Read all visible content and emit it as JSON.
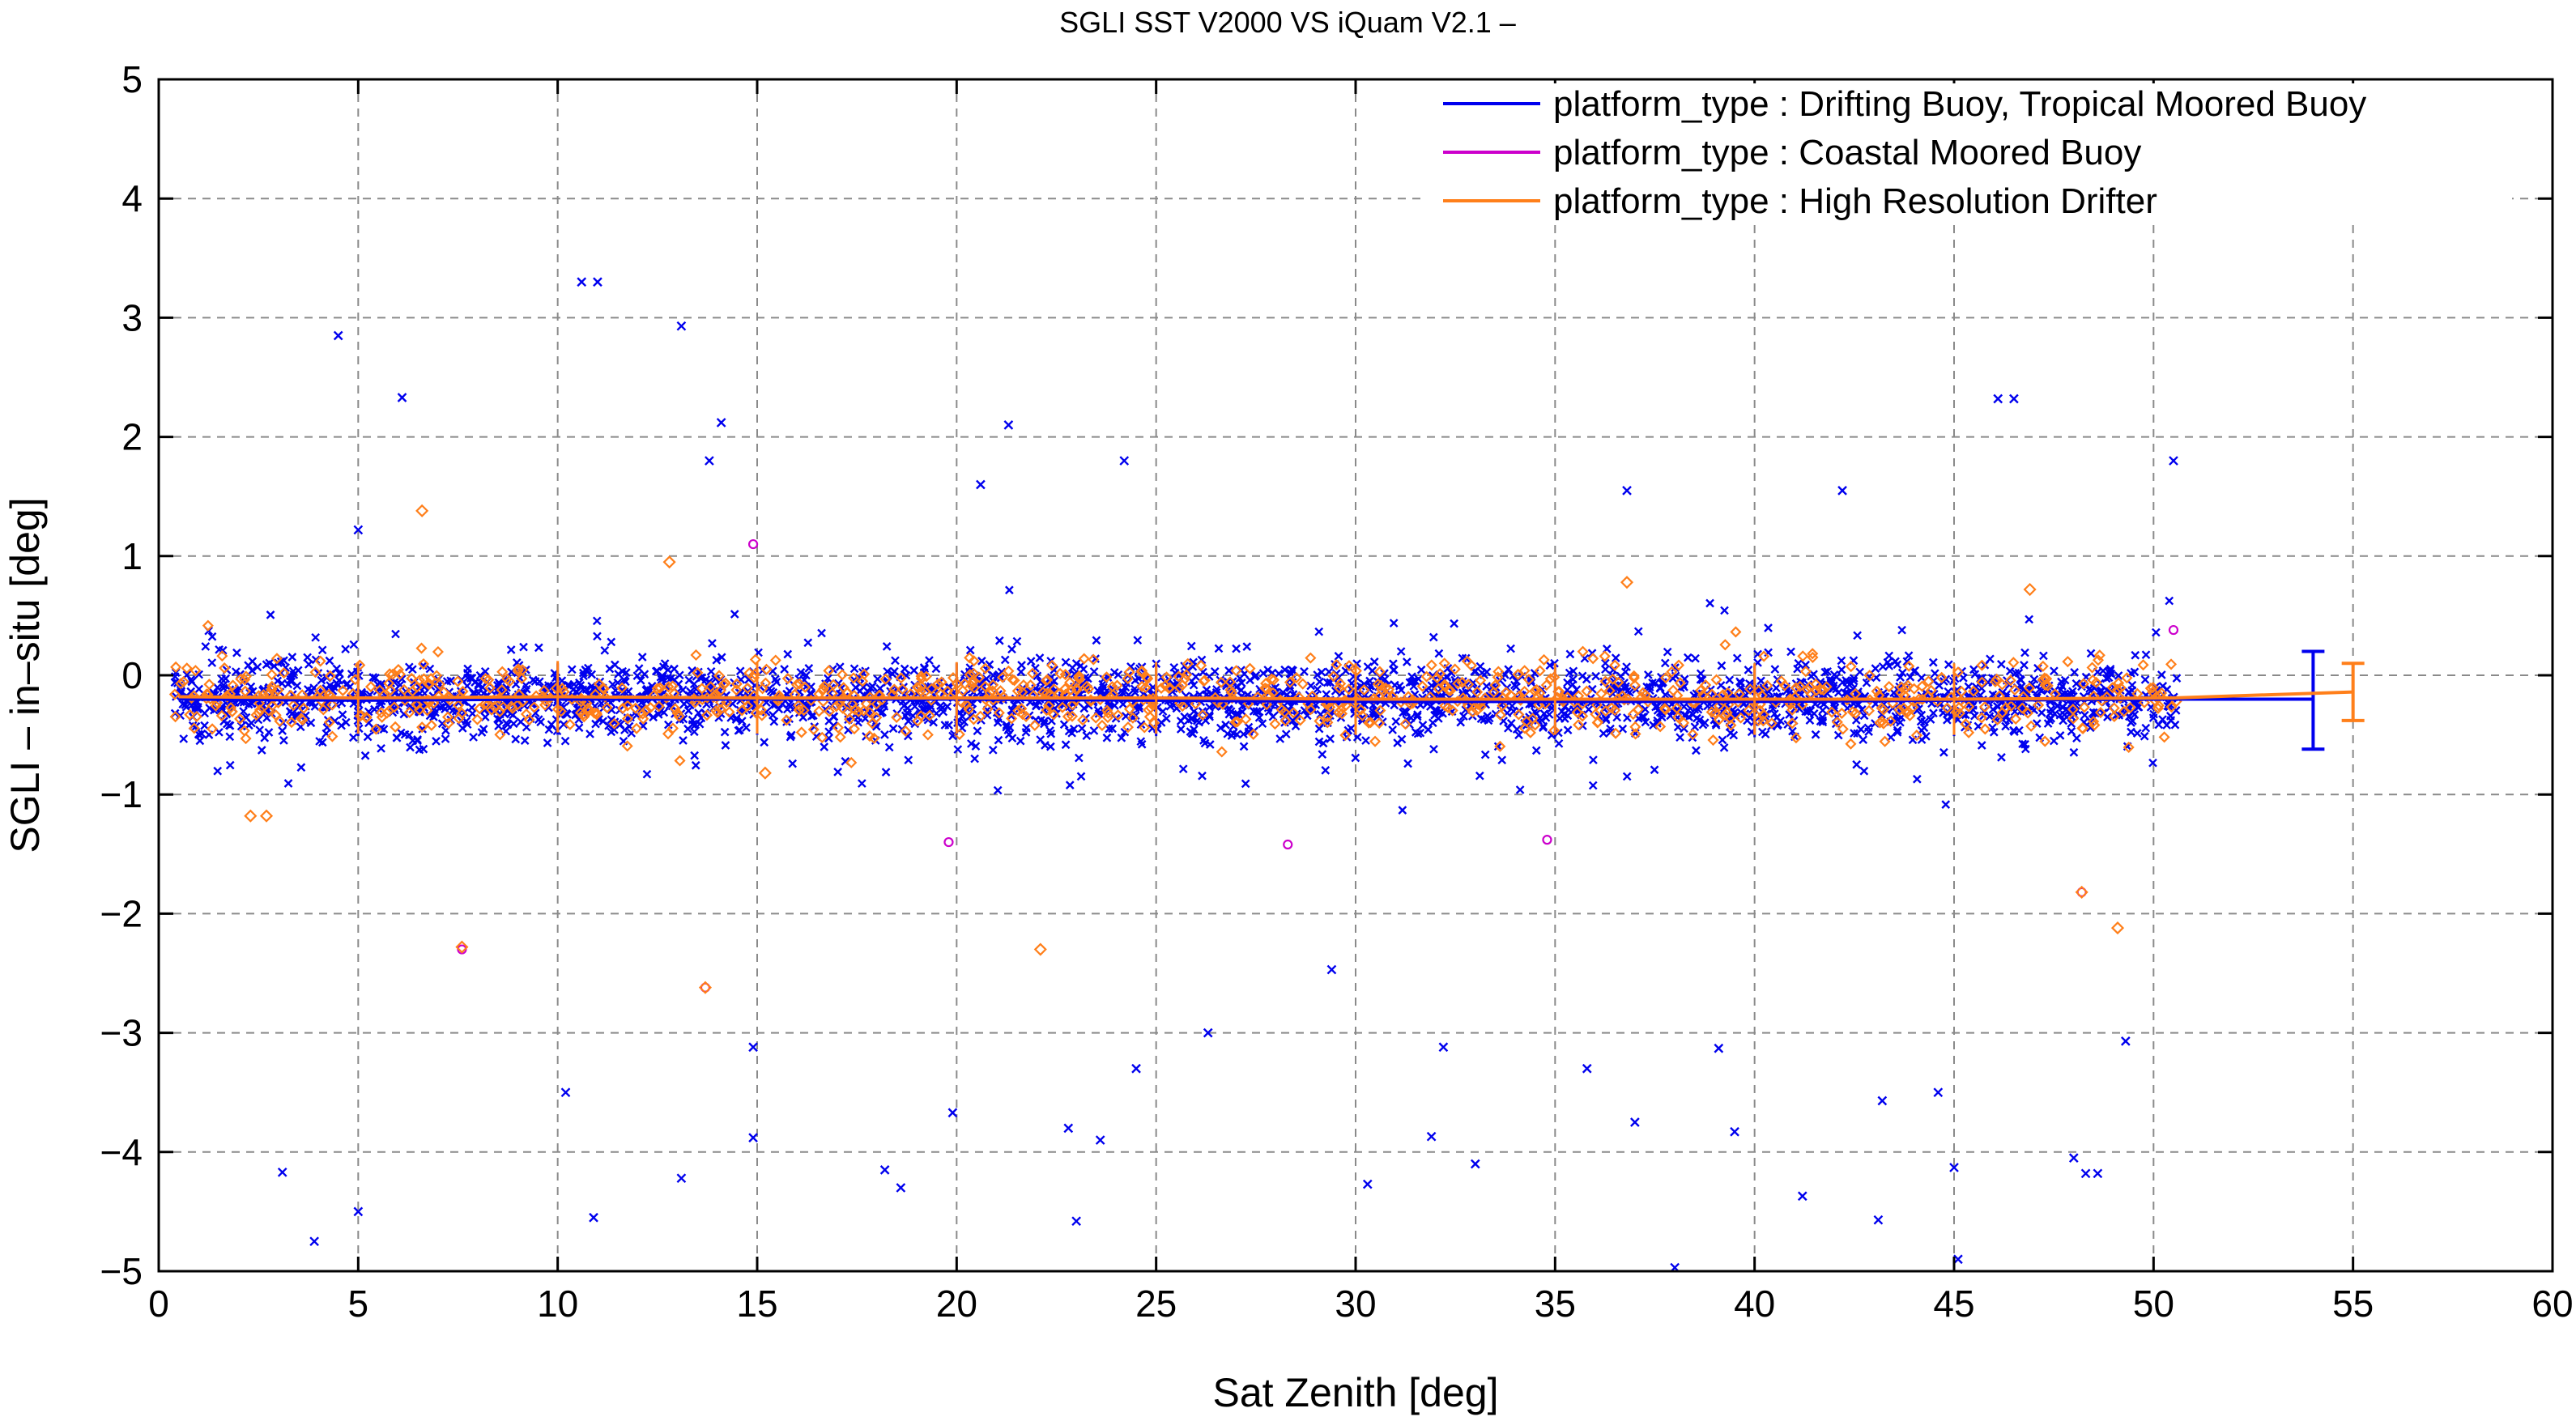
{
  "chart_data": {
    "type": "scatter",
    "title": "SGLI SST V2000 VS iQuam V2.1  –",
    "xlabel": "Sat Zenith [deg]",
    "ylabel": "SGLI – in–situ [deg]",
    "xlim": [
      0,
      60
    ],
    "ylim": [
      -5,
      5
    ],
    "x_ticks": [
      "0",
      "5",
      "10",
      "15",
      "20",
      "25",
      "30",
      "35",
      "40",
      "45",
      "50",
      "55",
      "60"
    ],
    "y_ticks": [
      "5",
      "4",
      "3",
      "2",
      "1",
      "0",
      "−1",
      "−2",
      "−3",
      "−4",
      "−5"
    ],
    "grid": true,
    "legend_position": "top-right",
    "series": [
      {
        "name": "platform_type : Drifting Buoy, Tropical Moored Buoy",
        "color": "#0000ee",
        "marker": "x",
        "mean_line": {
          "x": [
            0.5,
            5,
            10,
            15,
            20,
            25,
            30,
            35,
            40,
            45,
            50.5,
            54
          ],
          "y": [
            -0.2,
            -0.21,
            -0.2,
            -0.2,
            -0.2,
            -0.21,
            -0.22,
            -0.22,
            -0.22,
            -0.21,
            -0.2,
            -0.2
          ]
        },
        "summary_errorbar": {
          "x": 54,
          "mean": -0.2,
          "low": -0.62,
          "high": 0.2
        },
        "outliers": [
          {
            "x": 4.5,
            "y": 2.85
          },
          {
            "x": 6.1,
            "y": 2.33
          },
          {
            "x": 10.6,
            "y": 3.3
          },
          {
            "x": 11.0,
            "y": 3.3
          },
          {
            "x": 13.1,
            "y": 2.93
          },
          {
            "x": 14.1,
            "y": 2.12
          },
          {
            "x": 13.8,
            "y": 1.8
          },
          {
            "x": 21.3,
            "y": 2.1
          },
          {
            "x": 20.6,
            "y": 1.6
          },
          {
            "x": 24.2,
            "y": 1.8
          },
          {
            "x": 46.1,
            "y": 2.32
          },
          {
            "x": 46.5,
            "y": 2.32
          },
          {
            "x": 50.5,
            "y": 1.8
          },
          {
            "x": 42.2,
            "y": 1.55
          },
          {
            "x": 36.8,
            "y": 1.55
          },
          {
            "x": 5.0,
            "y": 1.22
          },
          {
            "x": 3.1,
            "y": -4.17
          },
          {
            "x": 3.9,
            "y": -4.75
          },
          {
            "x": 5.0,
            "y": -4.5
          },
          {
            "x": 10.2,
            "y": -3.5
          },
          {
            "x": 10.9,
            "y": -4.55
          },
          {
            "x": 13.1,
            "y": -4.22
          },
          {
            "x": 14.9,
            "y": -3.88
          },
          {
            "x": 14.9,
            "y": -3.12
          },
          {
            "x": 18.2,
            "y": -4.15
          },
          {
            "x": 18.6,
            "y": -4.3
          },
          {
            "x": 19.9,
            "y": -3.67
          },
          {
            "x": 22.8,
            "y": -3.8
          },
          {
            "x": 23.0,
            "y": -4.58
          },
          {
            "x": 23.6,
            "y": -3.9
          },
          {
            "x": 30.3,
            "y": -4.27
          },
          {
            "x": 31.9,
            "y": -3.87
          },
          {
            "x": 32.2,
            "y": -3.12
          },
          {
            "x": 33.0,
            "y": -4.1
          },
          {
            "x": 37.0,
            "y": -3.75
          },
          {
            "x": 39.1,
            "y": -3.13
          },
          {
            "x": 39.5,
            "y": -3.83
          },
          {
            "x": 41.2,
            "y": -4.37
          },
          {
            "x": 43.1,
            "y": -4.57
          },
          {
            "x": 43.2,
            "y": -3.57
          },
          {
            "x": 44.6,
            "y": -3.5
          },
          {
            "x": 45.0,
            "y": -4.13
          },
          {
            "x": 45.1,
            "y": -4.9
          },
          {
            "x": 48.0,
            "y": -4.05
          },
          {
            "x": 48.3,
            "y": -4.18
          },
          {
            "x": 48.6,
            "y": -4.18
          },
          {
            "x": 49.3,
            "y": -3.07
          },
          {
            "x": 38.0,
            "y": -4.97
          },
          {
            "x": 26.3,
            "y": -3.0
          },
          {
            "x": 24.5,
            "y": -3.3
          },
          {
            "x": 29.4,
            "y": -2.47
          },
          {
            "x": 35.8,
            "y": -3.3
          }
        ]
      },
      {
        "name": "platform_type : Coastal Moored Buoy",
        "color": "#cc00cc",
        "marker": "circle",
        "outliers": [
          {
            "x": 7.6,
            "y": -2.3
          },
          {
            "x": 13.7,
            "y": -2.62
          },
          {
            "x": 14.9,
            "y": 1.1
          },
          {
            "x": 48.2,
            "y": -1.82
          },
          {
            "x": 19.8,
            "y": -1.4
          },
          {
            "x": 28.3,
            "y": -1.42
          },
          {
            "x": 34.8,
            "y": -1.38
          },
          {
            "x": 50.5,
            "y": 0.38
          }
        ]
      },
      {
        "name": "platform_type : High Resolution Drifter",
        "color": "#ff7f1a",
        "marker": "diamond",
        "mean_line": {
          "x": [
            0.5,
            5,
            10,
            15,
            20,
            25,
            30,
            35,
            40,
            45,
            50.5,
            55
          ],
          "y": [
            -0.18,
            -0.19,
            -0.18,
            -0.19,
            -0.19,
            -0.19,
            -0.2,
            -0.2,
            -0.2,
            -0.2,
            -0.19,
            -0.14
          ]
        },
        "summary_errorbar": {
          "x": 55,
          "mean": -0.14,
          "low": -0.38,
          "high": 0.1
        },
        "outliers": [
          {
            "x": 6.6,
            "y": 1.38
          },
          {
            "x": 2.3,
            "y": -1.18
          },
          {
            "x": 2.7,
            "y": -1.18
          },
          {
            "x": 7.6,
            "y": -2.28
          },
          {
            "x": 13.7,
            "y": -2.62
          },
          {
            "x": 22.1,
            "y": -2.3
          },
          {
            "x": 49.1,
            "y": -2.12
          },
          {
            "x": 48.2,
            "y": -1.82
          },
          {
            "x": 12.8,
            "y": 0.95
          },
          {
            "x": 36.8,
            "y": 0.78
          },
          {
            "x": 46.9,
            "y": 0.72
          },
          {
            "x": 15.2,
            "y": -0.82
          }
        ]
      }
    ]
  }
}
